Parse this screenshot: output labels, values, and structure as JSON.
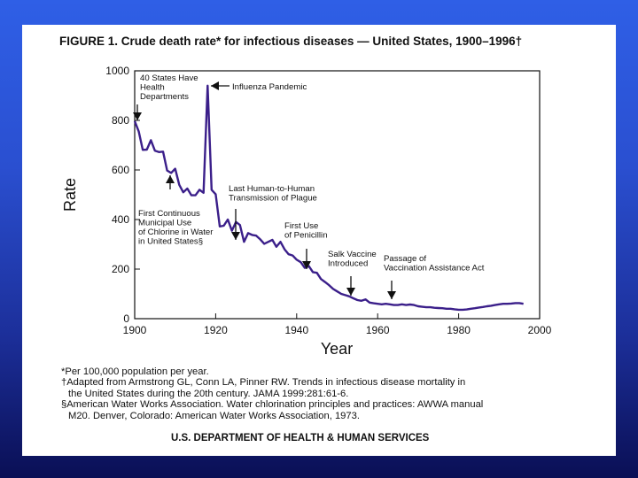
{
  "figure_title": "FIGURE 1. Crude death rate* for infectious diseases — United States, 1900–1996†",
  "footnotes": [
    "*Per 100,000 population per year.",
    "†Adapted from Armstrong GL, Conn LA, Pinner RW. Trends in infectious disease mortality in",
    "the United States during the 20th century. JAMA 1999:281:61-6.",
    "§American Water Works Association. Water chlorination principles and practices: AWWA manual",
    "M20. Denver, Colorado: American Water Works Association, 1973."
  ],
  "credit": "U.S. DEPARTMENT OF HEALTH & HUMAN SERVICES",
  "chart_data": {
    "type": "line",
    "title": "Crude death rate* for infectious diseases — United States, 1900–1996†",
    "xlabel": "Year",
    "ylabel": "Rate",
    "xlim": [
      1900,
      2000
    ],
    "ylim": [
      0,
      1000
    ],
    "x_ticks": [
      "1900",
      "1920",
      "1940",
      "1960",
      "1980",
      "2000"
    ],
    "y_ticks": [
      "0",
      "200",
      "400",
      "600",
      "800",
      "1000"
    ],
    "grid": false,
    "line_color": "#3b1f8a",
    "series": [
      {
        "x": [
          1900,
          1901,
          1902,
          1903,
          1904,
          1905,
          1906,
          1907,
          1908,
          1909,
          1910,
          1911,
          1912,
          1913,
          1914,
          1915,
          1916,
          1917,
          1918,
          1919,
          1920,
          1921,
          1922,
          1923,
          1924,
          1925,
          1926,
          1927,
          1928,
          1929,
          1930,
          1931,
          1932,
          1933,
          1934,
          1935,
          1936,
          1937,
          1938,
          1939,
          1940,
          1941,
          1942,
          1943,
          1944,
          1945,
          1946,
          1947,
          1948,
          1949,
          1950,
          1951,
          1952,
          1953,
          1954,
          1955,
          1956,
          1957,
          1958,
          1959,
          1960,
          1961,
          1962,
          1963,
          1964,
          1965,
          1966,
          1967,
          1968,
          1969,
          1970,
          1971,
          1972,
          1973,
          1974,
          1975,
          1976,
          1977,
          1978,
          1979,
          1980,
          1981,
          1982,
          1983,
          1984,
          1985,
          1986,
          1987,
          1988,
          1989,
          1990,
          1991,
          1992,
          1993,
          1994,
          1995,
          1996
        ],
        "y": [
          797,
          755,
          681,
          682,
          720,
          678,
          672,
          674,
          598,
          588,
          605,
          540,
          510,
          525,
          498,
          498,
          520,
          508,
          940,
          520,
          502,
          372,
          375,
          400,
          355,
          390,
          378,
          310,
          345,
          338,
          335,
          320,
          302,
          310,
          318,
          290,
          310,
          280,
          260,
          255,
          238,
          228,
          205,
          212,
          188,
          185,
          160,
          148,
          135,
          120,
          110,
          100,
          95,
          90,
          82,
          75,
          72,
          78,
          65,
          62,
          60,
          58,
          60,
          58,
          55,
          55,
          58,
          55,
          57,
          55,
          50,
          48,
          46,
          46,
          44,
          43,
          42,
          40,
          40,
          38,
          36,
          36,
          37,
          40,
          42,
          45,
          47,
          50,
          52,
          55,
          58,
          60,
          60,
          61,
          63,
          63,
          60
        ]
      }
    ],
    "annotations": [
      {
        "text": [
          "40 States Have",
          "Health",
          "Departments"
        ],
        "x": 1900,
        "y": 797
      },
      {
        "text": [
          "Influenza Pandemic"
        ],
        "x": 1918,
        "y": 940
      },
      {
        "text": [
          "First Continuous",
          "Municipal Use",
          "of Chlorine in Water",
          "in United States§"
        ],
        "x": 1908,
        "y": 598
      },
      {
        "text": [
          "Last Human-to-Human",
          "Transmission of Plague"
        ],
        "x": 1924,
        "y": 355
      },
      {
        "text": [
          "First Use",
          "of Penicillin"
        ],
        "x": 1942,
        "y": 205
      },
      {
        "text": [
          "Salk Vaccine",
          "Introduced"
        ],
        "x": 1953,
        "y": 90
      },
      {
        "text": [
          "Passage of",
          "Vaccination Assistance Act"
        ],
        "x": 1963,
        "y": 58
      }
    ]
  }
}
